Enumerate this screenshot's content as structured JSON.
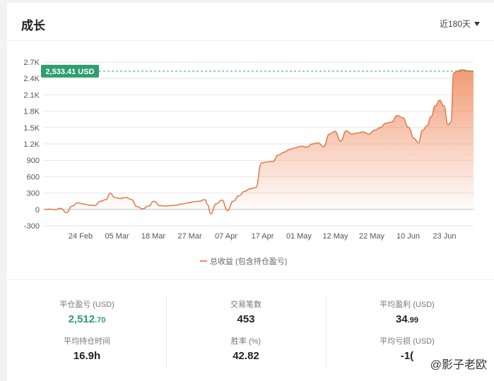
{
  "header": {
    "title": "成长",
    "range_label": "近180天"
  },
  "chart_data": {
    "type": "area",
    "title": "",
    "xlabel": "",
    "ylabel": "",
    "y_ticks": [
      "2.7K",
      "2.4K",
      "2.1K",
      "1.8K",
      "1.5K",
      "1.2K",
      "900",
      "600",
      "300",
      "0",
      "-300"
    ],
    "y_tick_values": [
      2700,
      2400,
      2100,
      1800,
      1500,
      1200,
      900,
      600,
      300,
      0,
      -300
    ],
    "ylim": [
      -300,
      2700
    ],
    "x_tick_labels": [
      "24 Feb",
      "05 Mar",
      "18 Mar",
      "27 Mar",
      "07 Apr",
      "17 Apr",
      "01 May",
      "12 May",
      "22 May",
      "10 Jun",
      "23 Jun"
    ],
    "current_value_label": "2,533.41 USD",
    "current_value": 2533.41,
    "legend": "总收益 (包含持仓盈亏)",
    "series": [
      {
        "name": "总收益 (包含持仓盈亏)",
        "color": "#f08a5d",
        "points": [
          [
            0,
            0
          ],
          [
            4,
            5
          ],
          [
            8,
            -5
          ],
          [
            12,
            20
          ],
          [
            16,
            -60
          ],
          [
            20,
            60
          ],
          [
            24,
            120
          ],
          [
            28,
            100
          ],
          [
            32,
            80
          ],
          [
            36,
            70
          ],
          [
            40,
            150
          ],
          [
            44,
            180
          ],
          [
            47,
            300
          ],
          [
            50,
            220
          ],
          [
            54,
            200
          ],
          [
            58,
            220
          ],
          [
            62,
            180
          ],
          [
            66,
            50
          ],
          [
            70,
            10
          ],
          [
            74,
            60
          ],
          [
            78,
            150
          ],
          [
            82,
            70
          ],
          [
            86,
            60
          ],
          [
            90,
            70
          ],
          [
            94,
            80
          ],
          [
            98,
            100
          ],
          [
            102,
            120
          ],
          [
            106,
            140
          ],
          [
            110,
            150
          ],
          [
            114,
            180
          ],
          [
            116,
            80
          ],
          [
            118,
            -80
          ],
          [
            122,
            100
          ],
          [
            126,
            170
          ],
          [
            130,
            -20
          ],
          [
            134,
            150
          ],
          [
            138,
            250
          ],
          [
            142,
            330
          ],
          [
            146,
            380
          ],
          [
            150,
            400
          ],
          [
            154,
            850
          ],
          [
            158,
            870
          ],
          [
            162,
            880
          ],
          [
            166,
            1000
          ],
          [
            170,
            1050
          ],
          [
            174,
            1100
          ],
          [
            178,
            1130
          ],
          [
            182,
            1160
          ],
          [
            186,
            1140
          ],
          [
            190,
            1200
          ],
          [
            194,
            1220
          ],
          [
            198,
            1150
          ],
          [
            202,
            1380
          ],
          [
            206,
            1430
          ],
          [
            210,
            1250
          ],
          [
            214,
            1440
          ],
          [
            218,
            1380
          ],
          [
            222,
            1400
          ],
          [
            226,
            1420
          ],
          [
            230,
            1380
          ],
          [
            234,
            1450
          ],
          [
            238,
            1500
          ],
          [
            242,
            1580
          ],
          [
            246,
            1600
          ],
          [
            250,
            1720
          ],
          [
            254,
            1680
          ],
          [
            258,
            1500
          ],
          [
            262,
            1300
          ],
          [
            265,
            1220
          ],
          [
            268,
            1450
          ],
          [
            271,
            1530
          ],
          [
            274,
            1700
          ],
          [
            277,
            1900
          ],
          [
            280,
            2000
          ],
          [
            283,
            1900
          ],
          [
            286,
            1550
          ],
          [
            288,
            1600
          ],
          [
            290,
            2500
          ],
          [
            293,
            2540
          ],
          [
            296,
            2560
          ],
          [
            300,
            2540
          ],
          [
            304,
            2533.41
          ]
        ]
      }
    ]
  },
  "stats": {
    "closed_pnl_label": "平仓盈亏 (USD)",
    "closed_pnl_int": "2,512",
    "closed_pnl_dec": ".70",
    "avg_hold_label": "平均持仓时间",
    "avg_hold_value": "16.9h",
    "trades_label": "交易笔数",
    "trades_value": "453",
    "winrate_label": "胜率 (%)",
    "winrate_value": "42.82",
    "avg_profit_label": "平均盈利 (USD)",
    "avg_profit_int": "34",
    "avg_profit_dec": ".99",
    "avg_loss_label": "平均亏损 (USD)",
    "avg_loss_value": "-1(",
    "watermark": "@影子老欧"
  }
}
